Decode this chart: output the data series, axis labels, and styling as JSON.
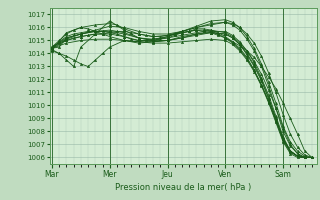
{
  "bg_color": "#c0dcc0",
  "plot_bg_color": "#d4ecd4",
  "grid_color_minor": "#b0ccb8",
  "grid_color_major": "#98b8a8",
  "line_color": "#1a5c1a",
  "xlabel": "Pression niveau de la mer( hPa )",
  "xtick_labels": [
    "Mar",
    "Mer",
    "Jeu",
    "Ven",
    "Sam"
  ],
  "xtick_positions": [
    0,
    48,
    96,
    144,
    192
  ],
  "ylim": [
    1005.5,
    1017.5
  ],
  "yticks": [
    1006,
    1007,
    1008,
    1009,
    1010,
    1011,
    1012,
    1013,
    1014,
    1015,
    1016,
    1017
  ],
  "xlim": [
    -2,
    220
  ],
  "vlines": [
    0,
    48,
    96,
    144,
    192
  ],
  "lines": [
    [
      0,
      1014.5,
      6,
      1014.8,
      12,
      1015.0,
      18,
      1015.2,
      24,
      1015.3,
      30,
      1015.4,
      36,
      1015.5,
      42,
      1015.5,
      48,
      1015.6,
      54,
      1015.7,
      60,
      1015.7,
      66,
      1015.6,
      72,
      1015.5,
      78,
      1015.4,
      84,
      1015.3,
      90,
      1015.3,
      96,
      1015.4,
      102,
      1015.5,
      108,
      1015.6,
      114,
      1015.7,
      120,
      1015.8,
      126,
      1015.7,
      132,
      1015.6,
      138,
      1015.4,
      144,
      1015.2,
      150,
      1014.9,
      156,
      1014.6,
      162,
      1014.2,
      168,
      1013.7,
      174,
      1013.0,
      180,
      1012.2,
      186,
      1011.3,
      192,
      1010.2,
      198,
      1009.0,
      204,
      1007.8,
      210,
      1006.5,
      216,
      1006.0
    ],
    [
      0,
      1014.5,
      12,
      1015.1,
      24,
      1015.5,
      36,
      1015.8,
      48,
      1016.1,
      60,
      1016.0,
      72,
      1015.7,
      84,
      1015.5,
      96,
      1015.5,
      108,
      1015.7,
      120,
      1016.0,
      132,
      1016.2,
      144,
      1016.4,
      150,
      1016.3,
      156,
      1016.0,
      162,
      1015.5,
      168,
      1014.8,
      174,
      1013.8,
      180,
      1012.5,
      186,
      1011.0,
      192,
      1009.3,
      198,
      1007.8,
      204,
      1006.8,
      210,
      1006.2,
      216,
      1006.0
    ],
    [
      0,
      1014.3,
      6,
      1014.0,
      12,
      1013.5,
      18,
      1013.0,
      24,
      1014.5,
      36,
      1015.5,
      48,
      1016.5,
      60,
      1015.8,
      72,
      1015.2,
      84,
      1015.0,
      96,
      1015.3,
      108,
      1015.7,
      120,
      1016.1,
      132,
      1016.5,
      144,
      1016.6,
      150,
      1016.4,
      156,
      1016.0,
      162,
      1015.3,
      168,
      1014.4,
      174,
      1013.2,
      180,
      1011.8,
      186,
      1010.2,
      192,
      1008.4,
      198,
      1007.2,
      204,
      1006.5,
      210,
      1006.1,
      216,
      1006.0
    ],
    [
      0,
      1014.4,
      6,
      1014.5,
      12,
      1015.2,
      24,
      1015.5,
      36,
      1015.7,
      48,
      1015.8,
      60,
      1015.6,
      72,
      1015.2,
      84,
      1015.1,
      96,
      1015.2,
      108,
      1015.4,
      120,
      1015.6,
      132,
      1015.8,
      144,
      1015.6,
      150,
      1015.3,
      156,
      1014.8,
      162,
      1014.2,
      168,
      1013.4,
      174,
      1012.4,
      180,
      1011.2,
      186,
      1009.8,
      192,
      1008.3,
      198,
      1007.0,
      204,
      1006.3,
      210,
      1006.0,
      216,
      1006.0
    ],
    [
      0,
      1014.2,
      6,
      1014.0,
      12,
      1013.8,
      18,
      1013.5,
      24,
      1013.2,
      30,
      1013.0,
      36,
      1013.5,
      42,
      1014.0,
      48,
      1014.5,
      60,
      1015.0,
      72,
      1014.9,
      84,
      1015.1,
      96,
      1015.3,
      102,
      1015.5,
      108,
      1015.6,
      114,
      1015.7,
      120,
      1015.8,
      126,
      1015.8,
      132,
      1015.7,
      138,
      1015.5,
      144,
      1015.2,
      150,
      1014.8,
      156,
      1014.3,
      162,
      1013.6,
      168,
      1012.7,
      174,
      1011.6,
      180,
      1010.3,
      186,
      1008.9,
      192,
      1007.4,
      198,
      1006.5,
      204,
      1006.1,
      210,
      1006.0,
      216,
      1006.0
    ],
    [
      0,
      1014.5,
      6,
      1015.0,
      12,
      1015.5,
      18,
      1015.8,
      24,
      1016.0,
      30,
      1015.9,
      36,
      1015.7,
      42,
      1015.5,
      48,
      1015.3,
      60,
      1015.0,
      72,
      1014.8,
      84,
      1014.9,
      96,
      1015.0,
      108,
      1015.3,
      120,
      1015.5,
      132,
      1015.6,
      144,
      1015.5,
      150,
      1015.2,
      156,
      1014.7,
      162,
      1013.9,
      168,
      1013.0,
      174,
      1011.9,
      180,
      1010.5,
      186,
      1009.0,
      192,
      1007.4,
      198,
      1006.5,
      204,
      1006.1,
      210,
      1006.0,
      216,
      1006.0
    ],
    [
      0,
      1014.3,
      12,
      1015.6,
      24,
      1016.0,
      36,
      1016.2,
      48,
      1016.3,
      54,
      1016.2,
      60,
      1015.9,
      72,
      1015.5,
      84,
      1015.3,
      96,
      1015.4,
      108,
      1015.7,
      120,
      1016.0,
      132,
      1016.3,
      144,
      1016.4,
      150,
      1016.2,
      156,
      1015.8,
      162,
      1015.1,
      168,
      1014.2,
      174,
      1013.0,
      180,
      1011.5,
      186,
      1009.8,
      192,
      1008.0,
      198,
      1006.9,
      204,
      1006.3,
      210,
      1006.0,
      216,
      1006.0
    ],
    [
      0,
      1014.4,
      12,
      1014.8,
      24,
      1015.0,
      36,
      1015.1,
      48,
      1015.1,
      60,
      1015.0,
      72,
      1014.9,
      84,
      1014.8,
      96,
      1014.8,
      108,
      1014.9,
      120,
      1015.0,
      132,
      1015.1,
      144,
      1015.0,
      150,
      1014.7,
      156,
      1014.2,
      162,
      1013.5,
      168,
      1012.6,
      174,
      1011.5,
      180,
      1010.2,
      186,
      1008.7,
      192,
      1007.2,
      198,
      1006.3,
      204,
      1006.0,
      210,
      1006.0,
      216,
      1006.0
    ],
    [
      0,
      1014.5,
      12,
      1015.2,
      24,
      1015.5,
      36,
      1015.7,
      48,
      1015.7,
      60,
      1015.5,
      72,
      1015.2,
      84,
      1015.0,
      96,
      1015.0,
      108,
      1015.2,
      120,
      1015.5,
      132,
      1015.7,
      144,
      1015.7,
      150,
      1015.4,
      156,
      1014.9,
      162,
      1014.2,
      168,
      1013.3,
      174,
      1012.1,
      180,
      1010.8,
      186,
      1009.2,
      192,
      1007.6,
      198,
      1006.5,
      204,
      1006.1,
      210,
      1006.0,
      216,
      1006.0
    ],
    [
      0,
      1014.3,
      6,
      1014.9,
      12,
      1015.3,
      18,
      1015.5,
      24,
      1015.6,
      30,
      1015.7,
      36,
      1015.7,
      42,
      1015.7,
      48,
      1015.6,
      54,
      1015.5,
      60,
      1015.3,
      66,
      1015.1,
      72,
      1015.0,
      78,
      1015.0,
      84,
      1015.0,
      90,
      1015.1,
      96,
      1015.2,
      102,
      1015.4,
      108,
      1015.6,
      114,
      1015.7,
      120,
      1015.9,
      126,
      1015.9,
      132,
      1015.8,
      138,
      1015.6,
      144,
      1015.3,
      150,
      1014.9,
      156,
      1014.4,
      162,
      1013.7,
      168,
      1012.7,
      174,
      1011.6,
      180,
      1010.3,
      186,
      1008.8,
      192,
      1007.3,
      198,
      1006.4,
      204,
      1006.1,
      210,
      1006.0,
      216,
      1006.0
    ],
    [
      0,
      1014.4,
      12,
      1015.0,
      24,
      1015.3,
      36,
      1015.5,
      48,
      1015.5,
      60,
      1015.3,
      72,
      1015.0,
      84,
      1014.9,
      96,
      1015.0,
      108,
      1015.2,
      120,
      1015.4,
      132,
      1015.6,
      144,
      1015.5,
      150,
      1015.2,
      156,
      1014.7,
      162,
      1014.0,
      168,
      1013.1,
      174,
      1012.0,
      180,
      1010.6,
      186,
      1009.0,
      192,
      1007.5,
      198,
      1006.5,
      204,
      1006.1,
      210,
      1006.0,
      216,
      1006.0
    ]
  ]
}
